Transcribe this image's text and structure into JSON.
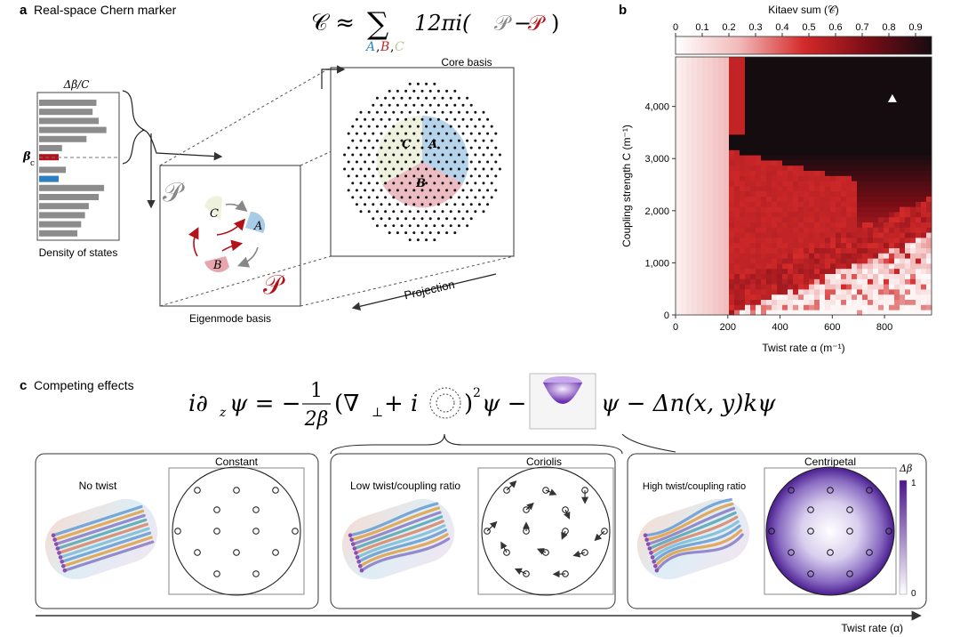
{
  "panel_a": {
    "letter": "a",
    "title": "Real-space Chern marker",
    "formula": {
      "lhs": "𝒞 ≈",
      "sum": "∑",
      "sub_a": "A",
      "sub_comma1": ",",
      "sub_b": "B",
      "sub_comma2": ",",
      "sub_c": "C",
      "rhs_coef": "12πi(",
      "p_left": "𝒫",
      "minus": "−",
      "p_right": "𝒫",
      "close": ")"
    },
    "dos": {
      "top_label": "Δβ/C",
      "side_label": "β",
      "side_sub": "c",
      "bottom_label": "Density of states",
      "bars": [
        0.75,
        0.7,
        0.78,
        0.88,
        0.62,
        0.3,
        0.58,
        0.35,
        0.95,
        0.85,
        0.78,
        0.65,
        0.6,
        0.55,
        0.5
      ]
    },
    "core_basis": "Core basis",
    "eigenmode_basis": "Eigenmode basis",
    "projection": "Projection",
    "sector_a": "A",
    "sector_b": "B",
    "sector_c": "C",
    "p_symbol": "𝒫",
    "p_symbol_red": "𝒫"
  },
  "panel_b": {
    "letter": "b",
    "chart_data": {
      "type": "heatmap",
      "title": "",
      "colorbar_label": "Kitaev sum (𝒞)",
      "colorbar_ticks": [
        "0",
        "0.1",
        "0.2",
        "0.3",
        "0.4",
        "0.5",
        "0.6",
        "0.7",
        "0.8",
        "0.9"
      ],
      "xlabel": "Twist rate α (m⁻¹)",
      "ylabel": "Coupling strength C (m⁻¹)",
      "x_ticks": [
        "0",
        "200",
        "400",
        "600",
        "800"
      ],
      "y_ticks": [
        "0",
        "1,000",
        "2,000",
        "3,000",
        "4,000"
      ],
      "xlim": [
        0,
        980
      ],
      "ylim": [
        0,
        4950
      ],
      "marker": {
        "x": 830,
        "y": 4150
      }
    }
  },
  "panel_c": {
    "letter": "c",
    "title": "Competing effects",
    "equation": {
      "lhs": "i∂",
      "lhs_sub": "z",
      "lhs_psi": "ψ = −",
      "frac_num": "1",
      "frac_den": "2β",
      "mid1": "(∇",
      "mid1_sub": "⊥",
      "mid2": " + i",
      "mid3": ")",
      "mid3_sup": "2",
      "mid4": "ψ −",
      "tail": "ψ − Δn(x, y)kψ"
    },
    "cases": [
      {
        "label": "No twist",
        "panel_title": "Constant"
      },
      {
        "label": "Low twist/coupling ratio",
        "panel_title": "Coriolis"
      },
      {
        "label": "High twist/coupling ratio",
        "panel_title": "Centripetal"
      }
    ],
    "colorbar_label": "Δβ",
    "colorbar_max": "1",
    "colorbar_min": "0",
    "axis_label": "Twist rate (α)"
  }
}
